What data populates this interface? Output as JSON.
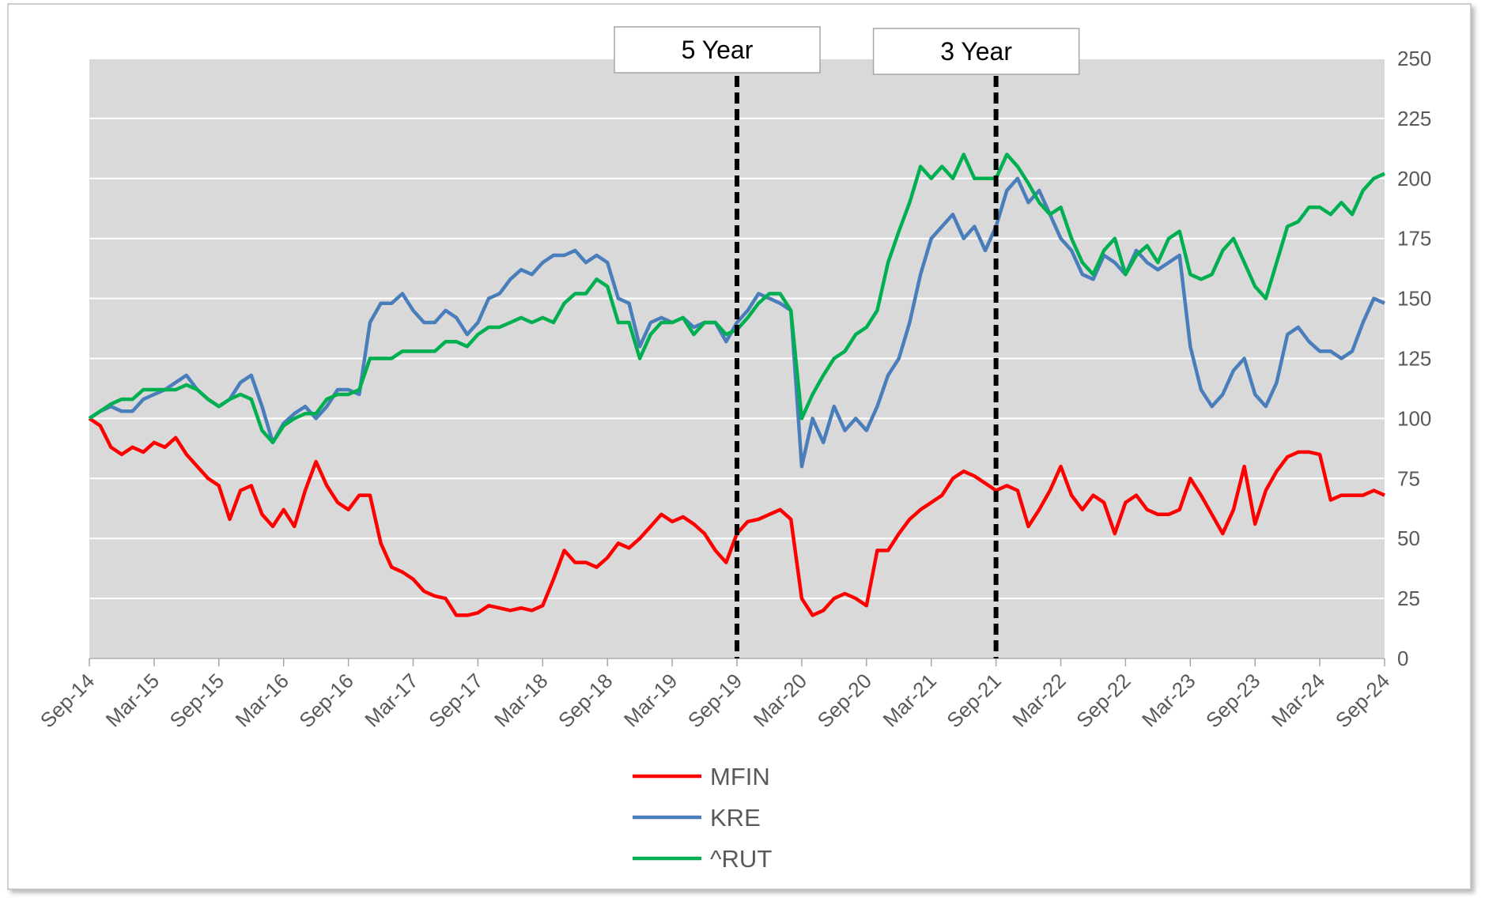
{
  "chart_data": {
    "type": "line",
    "categories": [
      "Sep-14",
      null,
      null,
      null,
      null,
      null,
      "Mar-15",
      null,
      null,
      null,
      null,
      null,
      "Sep-15",
      null,
      null,
      null,
      null,
      null,
      "Mar-16",
      null,
      null,
      null,
      null,
      null,
      "Sep-16",
      null,
      null,
      null,
      null,
      null,
      "Mar-17",
      null,
      null,
      null,
      null,
      null,
      "Sep-17",
      null,
      null,
      null,
      null,
      null,
      "Mar-18",
      null,
      null,
      null,
      null,
      null,
      "Sep-18",
      null,
      null,
      null,
      null,
      null,
      "Mar-19",
      null,
      null,
      null,
      null,
      null,
      "Sep-19",
      null,
      null,
      null,
      null,
      null,
      "Mar-20",
      null,
      null,
      null,
      null,
      null,
      "Sep-20",
      null,
      null,
      null,
      null,
      null,
      "Mar-21",
      null,
      null,
      null,
      null,
      null,
      "Sep-21",
      null,
      null,
      null,
      null,
      null,
      "Mar-22",
      null,
      null,
      null,
      null,
      null,
      "Sep-22",
      null,
      null,
      null,
      null,
      null,
      "Mar-23",
      null,
      null,
      null,
      null,
      null,
      "Sep-23",
      null,
      null,
      null,
      null,
      null,
      "Mar-24",
      null,
      null,
      null,
      null,
      null,
      "Sep-24"
    ],
    "series": [
      {
        "name": "MFIN",
        "color": "#ff0000",
        "values": [
          100,
          97,
          88,
          85,
          88,
          86,
          90,
          88,
          92,
          85,
          80,
          75,
          72,
          58,
          70,
          72,
          60,
          55,
          62,
          55,
          70,
          82,
          72,
          65,
          62,
          68,
          68,
          48,
          38,
          36,
          33,
          28,
          26,
          25,
          18,
          18,
          19,
          22,
          21,
          20,
          21,
          20,
          22,
          33,
          45,
          40,
          40,
          38,
          42,
          48,
          46,
          50,
          55,
          60,
          57,
          59,
          56,
          52,
          45,
          40,
          52,
          57,
          58,
          60,
          62,
          58,
          25,
          18,
          20,
          25,
          27,
          25,
          22,
          45,
          45,
          52,
          58,
          62,
          65,
          68,
          75,
          78,
          76,
          73,
          70,
          72,
          70,
          55,
          62,
          70,
          80,
          68,
          62,
          68,
          65,
          52,
          65,
          68,
          62,
          60,
          60,
          62,
          75,
          68,
          60,
          52,
          62,
          80,
          56,
          70,
          78,
          84,
          86,
          86,
          85,
          66,
          68,
          68,
          68,
          70,
          68
        ]
      },
      {
        "name": "KRE",
        "color": "#4a7ebb",
        "values": [
          100,
          103,
          105,
          103,
          103,
          108,
          110,
          112,
          115,
          118,
          112,
          108,
          105,
          108,
          115,
          118,
          105,
          90,
          98,
          102,
          105,
          100,
          105,
          112,
          112,
          110,
          140,
          148,
          148,
          152,
          145,
          140,
          140,
          145,
          142,
          135,
          140,
          150,
          152,
          158,
          162,
          160,
          165,
          168,
          168,
          170,
          165,
          168,
          165,
          150,
          148,
          130,
          140,
          142,
          140,
          142,
          138,
          140,
          140,
          132,
          140,
          145,
          152,
          150,
          148,
          145,
          80,
          100,
          90,
          105,
          95,
          100,
          95,
          105,
          118,
          125,
          140,
          160,
          175,
          180,
          185,
          175,
          180,
          170,
          180,
          195,
          200,
          190,
          195,
          185,
          175,
          170,
          160,
          158,
          168,
          165,
          160,
          170,
          165,
          162,
          165,
          168,
          130,
          112,
          105,
          110,
          120,
          125,
          110,
          105,
          115,
          135,
          138,
          132,
          128,
          128,
          125,
          128,
          140,
          150,
          148
        ]
      },
      {
        "name": "^RUT",
        "color": "#00b050",
        "values": [
          100,
          103,
          106,
          108,
          108,
          112,
          112,
          112,
          112,
          114,
          112,
          108,
          105,
          108,
          110,
          108,
          95,
          90,
          97,
          100,
          102,
          102,
          108,
          110,
          110,
          112,
          125,
          125,
          125,
          128,
          128,
          128,
          128,
          132,
          132,
          130,
          135,
          138,
          138,
          140,
          142,
          140,
          142,
          140,
          148,
          152,
          152,
          158,
          155,
          140,
          140,
          125,
          135,
          140,
          140,
          142,
          135,
          140,
          140,
          135,
          137,
          142,
          148,
          152,
          152,
          145,
          100,
          110,
          118,
          125,
          128,
          135,
          138,
          145,
          165,
          178,
          190,
          205,
          200,
          205,
          200,
          210,
          200,
          200,
          200,
          210,
          205,
          198,
          190,
          185,
          188,
          175,
          165,
          160,
          170,
          175,
          160,
          168,
          172,
          165,
          175,
          178,
          160,
          158,
          160,
          170,
          175,
          165,
          155,
          150,
          165,
          180,
          182,
          188,
          188,
          185,
          190,
          185,
          195,
          200,
          202
        ]
      }
    ],
    "ylim": [
      0,
      250
    ],
    "yticks": [
      0,
      25,
      50,
      75,
      100,
      125,
      150,
      175,
      200,
      225,
      250
    ],
    "grid": true,
    "annotations": [
      {
        "text": "5 Year",
        "x": "Sep-19"
      },
      {
        "text": "3 Year",
        "x": "Sep-21"
      }
    ]
  }
}
